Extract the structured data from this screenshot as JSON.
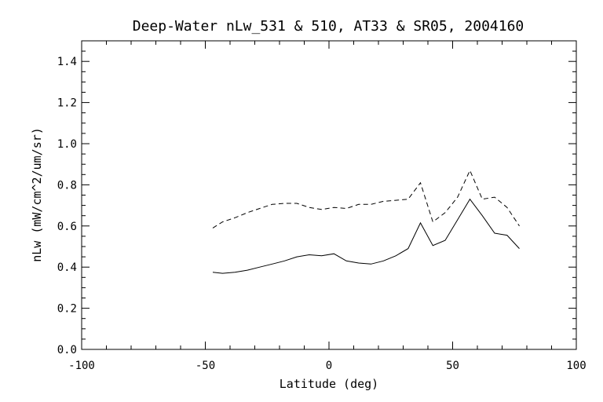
{
  "chart_data": {
    "type": "line",
    "title": "Deep-Water nLw_531 & 510, AT33 & SR05, 2004160",
    "xlabel": "Latitude (deg)",
    "ylabel": "nLw (mW/cm^2/um/sr)",
    "xlim": [
      -100,
      100
    ],
    "ylim": [
      0.0,
      1.5
    ],
    "xticks": [
      "-100",
      "-50",
      "0",
      "50",
      "100"
    ],
    "yticks": [
      "0.0",
      "0.2",
      "0.4",
      "0.6",
      "0.8",
      "1.0",
      "1.2",
      "1.4"
    ],
    "grid": false,
    "series": [
      {
        "style": "solid",
        "x": [
          -47,
          -43,
          -38,
          -33,
          -28,
          -23,
          -18,
          -13,
          -8,
          -3,
          2,
          7,
          12,
          17,
          22,
          27,
          32,
          37,
          42,
          47,
          52,
          57,
          62,
          67,
          72,
          77
        ],
        "y": [
          0.375,
          0.37,
          0.375,
          0.385,
          0.4,
          0.415,
          0.43,
          0.45,
          0.46,
          0.455,
          0.465,
          0.43,
          0.42,
          0.415,
          0.43,
          0.455,
          0.49,
          0.615,
          0.505,
          0.53,
          0.63,
          0.73,
          0.65,
          0.565,
          0.555,
          0.49
        ]
      },
      {
        "style": "dashed",
        "x": [
          -47,
          -43,
          -38,
          -33,
          -28,
          -23,
          -18,
          -13,
          -8,
          -3,
          2,
          7,
          12,
          17,
          22,
          27,
          32,
          37,
          42,
          47,
          52,
          57,
          62,
          67,
          72,
          77
        ],
        "y": [
          0.59,
          0.62,
          0.64,
          0.665,
          0.685,
          0.705,
          0.71,
          0.71,
          0.69,
          0.68,
          0.69,
          0.685,
          0.705,
          0.705,
          0.72,
          0.725,
          0.73,
          0.81,
          0.62,
          0.665,
          0.74,
          0.87,
          0.73,
          0.74,
          0.69,
          0.6
        ]
      }
    ]
  }
}
